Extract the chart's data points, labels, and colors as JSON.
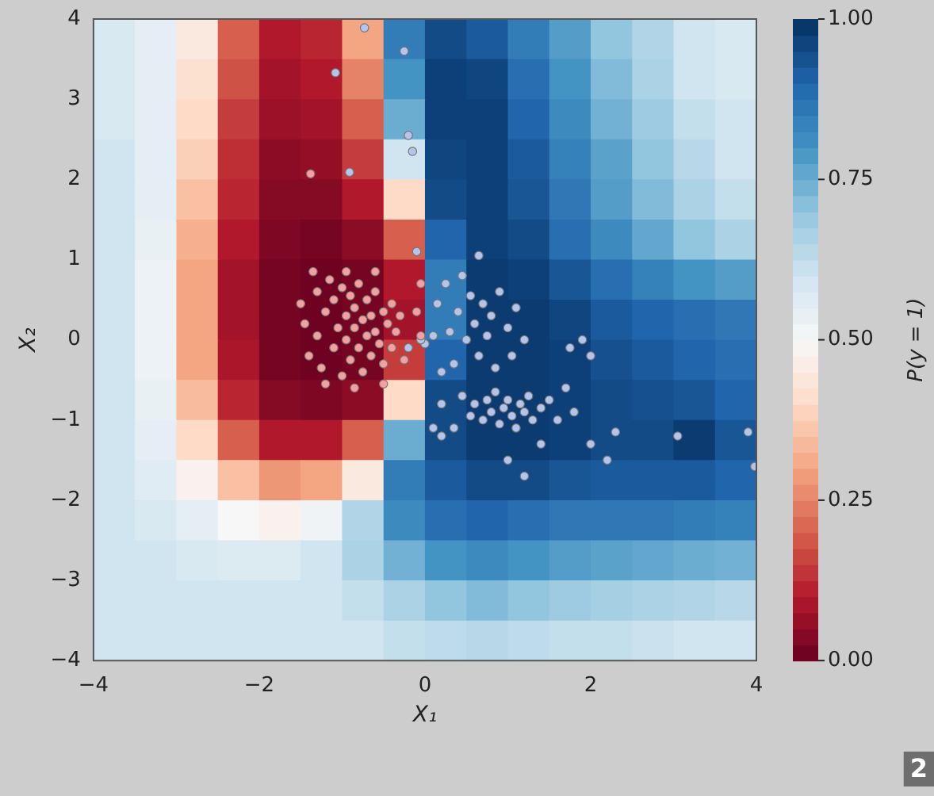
{
  "chart_data": {
    "type": "heatmap",
    "xlabel": "X₁",
    "ylabel": "X₂",
    "clabel": "P(y = 1)",
    "xlim": [
      -4,
      4
    ],
    "ylim": [
      -4,
      4
    ],
    "xticks": [
      {
        "value": -4,
        "label": "−4"
      },
      {
        "value": -2,
        "label": "−2"
      },
      0,
      2,
      4
    ],
    "yticks": [
      {
        "value": -4,
        "label": "−4"
      },
      {
        "value": -3,
        "label": "−3"
      },
      {
        "value": -2,
        "label": "−2"
      },
      {
        "value": -1,
        "label": "−1"
      },
      0,
      1,
      2,
      3,
      4
    ],
    "clim": [
      0,
      1
    ],
    "cticks": [
      {
        "value": 0,
        "label": "0.00"
      },
      {
        "value": 0.25,
        "label": "0.25"
      },
      {
        "value": 0.5,
        "label": "0.50"
      },
      {
        "value": 0.75,
        "label": "0.75"
      },
      {
        "value": 1,
        "label": "1.00"
      }
    ],
    "cells": [
      [
        0.58,
        0.55,
        0.45,
        0.2,
        0.1,
        0.12,
        0.3,
        0.85,
        0.95,
        0.92,
        0.85,
        0.78,
        0.7,
        0.65,
        0.6,
        0.58
      ],
      [
        0.58,
        0.55,
        0.42,
        0.18,
        0.08,
        0.1,
        0.25,
        0.8,
        0.97,
        0.96,
        0.88,
        0.8,
        0.72,
        0.66,
        0.6,
        0.58
      ],
      [
        0.58,
        0.55,
        0.4,
        0.15,
        0.07,
        0.08,
        0.2,
        0.75,
        0.97,
        0.97,
        0.9,
        0.82,
        0.74,
        0.68,
        0.62,
        0.6
      ],
      [
        0.6,
        0.55,
        0.38,
        0.13,
        0.05,
        0.06,
        0.15,
        0.6,
        0.96,
        0.97,
        0.92,
        0.84,
        0.77,
        0.7,
        0.64,
        0.6
      ],
      [
        0.6,
        0.55,
        0.35,
        0.12,
        0.04,
        0.04,
        0.1,
        0.4,
        0.95,
        0.97,
        0.93,
        0.86,
        0.78,
        0.72,
        0.66,
        0.62
      ],
      [
        0.6,
        0.54,
        0.32,
        0.1,
        0.03,
        0.02,
        0.05,
        0.2,
        0.9,
        0.97,
        0.95,
        0.88,
        0.82,
        0.76,
        0.7,
        0.66
      ],
      [
        0.6,
        0.53,
        0.3,
        0.08,
        0.02,
        0.01,
        0.02,
        0.1,
        0.85,
        0.98,
        0.97,
        0.93,
        0.88,
        0.84,
        0.8,
        0.78
      ],
      [
        0.6,
        0.53,
        0.3,
        0.08,
        0.02,
        0.01,
        0.02,
        0.08,
        0.85,
        0.98,
        0.98,
        0.96,
        0.92,
        0.9,
        0.88,
        0.86
      ],
      [
        0.6,
        0.53,
        0.3,
        0.09,
        0.02,
        0.01,
        0.02,
        0.15,
        0.9,
        0.98,
        0.98,
        0.97,
        0.94,
        0.92,
        0.9,
        0.88
      ],
      [
        0.6,
        0.54,
        0.34,
        0.12,
        0.04,
        0.03,
        0.05,
        0.4,
        0.95,
        0.98,
        0.98,
        0.97,
        0.95,
        0.94,
        0.93,
        0.9
      ],
      [
        0.6,
        0.55,
        0.4,
        0.2,
        0.1,
        0.1,
        0.2,
        0.75,
        0.95,
        0.98,
        0.98,
        0.97,
        0.95,
        0.95,
        0.98,
        0.93
      ],
      [
        0.6,
        0.56,
        0.48,
        0.35,
        0.28,
        0.3,
        0.45,
        0.85,
        0.92,
        0.95,
        0.95,
        0.93,
        0.92,
        0.92,
        0.92,
        0.9
      ],
      [
        0.6,
        0.58,
        0.55,
        0.5,
        0.48,
        0.52,
        0.65,
        0.82,
        0.88,
        0.9,
        0.88,
        0.86,
        0.86,
        0.86,
        0.85,
        0.84
      ],
      [
        0.6,
        0.6,
        0.58,
        0.57,
        0.57,
        0.6,
        0.66,
        0.74,
        0.8,
        0.82,
        0.8,
        0.78,
        0.77,
        0.76,
        0.75,
        0.74
      ],
      [
        0.6,
        0.6,
        0.6,
        0.6,
        0.6,
        0.6,
        0.62,
        0.66,
        0.7,
        0.72,
        0.7,
        0.68,
        0.67,
        0.66,
        0.65,
        0.64
      ],
      [
        0.6,
        0.6,
        0.6,
        0.6,
        0.6,
        0.6,
        0.6,
        0.62,
        0.63,
        0.64,
        0.63,
        0.62,
        0.62,
        0.61,
        0.6,
        0.6
      ]
    ],
    "series": [
      {
        "type": "scatter",
        "color": "#f4a0a0",
        "x": [
          -1.5,
          -1.45,
          -1.4,
          -1.3,
          -1.3,
          -1.25,
          -1.2,
          -1.15,
          -1.1,
          -1.1,
          -1.05,
          -1.0,
          -1.0,
          -0.95,
          -0.95,
          -0.9,
          -0.9,
          -0.85,
          -0.85,
          -0.8,
          -0.8,
          -0.75,
          -0.75,
          -0.7,
          -0.7,
          -0.65,
          -0.65,
          -0.6,
          -0.6,
          -0.55,
          -0.5,
          -0.5,
          -0.45,
          -0.4,
          -0.4,
          -0.35,
          -0.3,
          -0.25,
          -0.1,
          -0.05,
          -0.05,
          -1.2,
          -0.85,
          -1.38,
          -0.95,
          -1.35,
          -0.5,
          -0.6
        ],
        "values": [
          0.45,
          0.2,
          -0.2,
          0.6,
          0.05,
          -0.35,
          0.35,
          0.75,
          -0.1,
          0.5,
          0.15,
          -0.45,
          0.65,
          0.3,
          0.0,
          0.55,
          -0.25,
          0.15,
          0.4,
          -0.1,
          0.7,
          0.25,
          -0.4,
          0.5,
          0.05,
          0.3,
          -0.2,
          0.6,
          0.1,
          -0.05,
          0.35,
          -0.3,
          0.2,
          0.45,
          -0.1,
          0.1,
          0.3,
          -0.25,
          0.35,
          0.7,
          0.05,
          -0.55,
          -0.6,
          2.07,
          0.85,
          0.85,
          -0.55,
          0.85
        ]
      },
      {
        "type": "scatter",
        "color": "#b4c4ec",
        "x": [
          0.0,
          0.15,
          0.25,
          0.3,
          0.35,
          0.4,
          0.45,
          0.5,
          0.55,
          0.6,
          0.65,
          0.7,
          0.75,
          0.8,
          0.85,
          0.9,
          1.0,
          1.05,
          1.1,
          1.2,
          0.2,
          0.65,
          0.1,
          0.2,
          0.35,
          0.45,
          0.55,
          0.6,
          0.7,
          0.75,
          0.8,
          0.85,
          0.9,
          0.95,
          1.0,
          1.05,
          1.1,
          1.15,
          1.2,
          1.25,
          1.3,
          1.4,
          1.5,
          1.6,
          1.7,
          1.8,
          1.4,
          1.2,
          1.0,
          0.1,
          0.2,
          2.0,
          2.3,
          2.2,
          1.9,
          2.0,
          1.75,
          3.05,
          3.9,
          3.98,
          -0.25,
          -0.2,
          -0.15,
          -0.1,
          -0.05,
          -0.73,
          -1.08,
          -0.91,
          -0.2
        ],
        "values": [
          -0.05,
          0.45,
          0.7,
          0.1,
          -0.3,
          0.35,
          0.8,
          0.0,
          0.55,
          0.2,
          -0.2,
          0.45,
          0.05,
          0.3,
          -0.35,
          0.6,
          0.15,
          -0.2,
          0.4,
          0.0,
          -0.4,
          1.05,
          0.05,
          -0.8,
          -1.1,
          -0.7,
          -0.95,
          -0.8,
          -1.0,
          -0.75,
          -0.9,
          -0.65,
          -1.05,
          -0.85,
          -0.75,
          -0.95,
          -1.1,
          -0.8,
          -0.9,
          -0.7,
          -1.0,
          -0.85,
          -0.75,
          -1.0,
          -0.6,
          -0.9,
          -1.3,
          -1.7,
          -1.5,
          -1.1,
          -1.2,
          -1.3,
          -1.15,
          -1.5,
          0.0,
          -0.2,
          -0.1,
          -1.2,
          -1.15,
          -1.58,
          3.6,
          2.55,
          2.35,
          1.1,
          0.0,
          3.89,
          3.33,
          2.09,
          -0.1
        ]
      }
    ],
    "marker": "circle",
    "grid": false,
    "legend": false,
    "annotations": [
      "2"
    ]
  }
}
